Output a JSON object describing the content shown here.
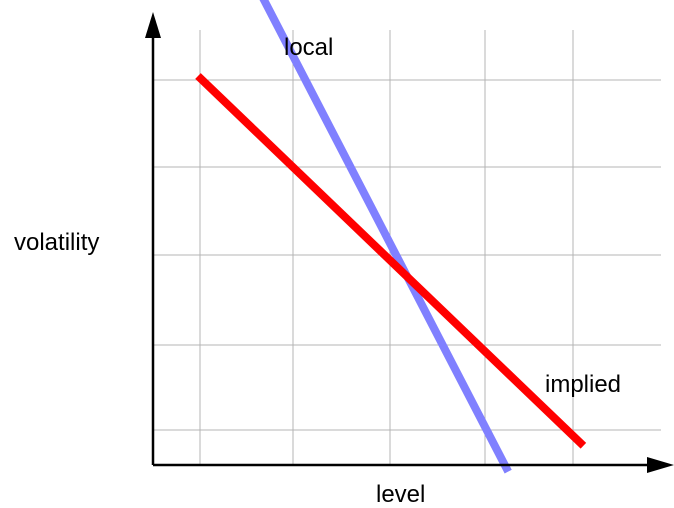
{
  "chart_data": {
    "type": "line",
    "title": "",
    "xlabel": "level",
    "ylabel": "volatility",
    "grid": true,
    "ticks_labeled": false,
    "series": [
      {
        "name": "local",
        "color": "#8080ff",
        "points": [
          [
            0.6,
            5.6
          ],
          [
            3.3,
            -0.1
          ]
        ]
      },
      {
        "name": "implied",
        "color": "#ff0000",
        "points": [
          [
            0.0,
            4.5
          ],
          [
            4.1,
            0.2
          ]
        ]
      }
    ]
  }
}
